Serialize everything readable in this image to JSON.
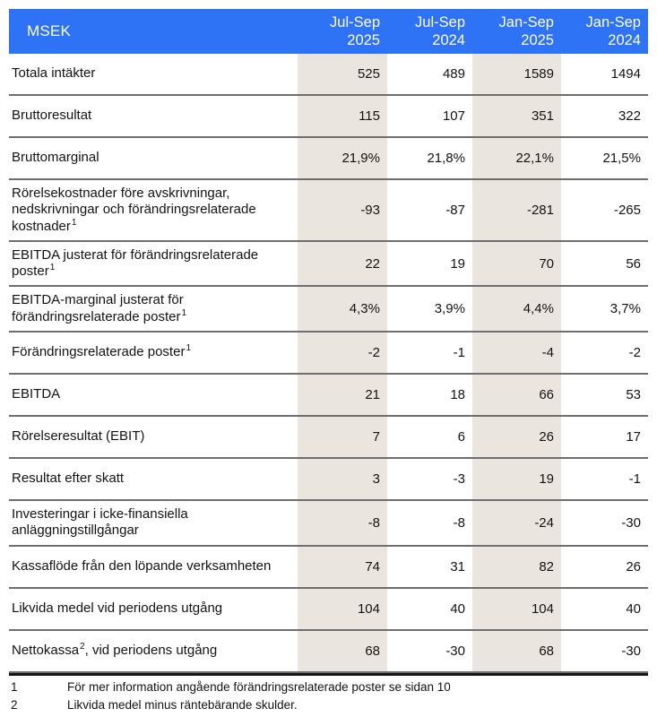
{
  "table": {
    "unit_label": "MSEK",
    "header": {
      "columns": [
        {
          "period": "Jul-Sep",
          "year": "2025"
        },
        {
          "period": "Jul-Sep",
          "year": "2024"
        },
        {
          "period": "Jan-Sep",
          "year": "2025"
        },
        {
          "period": "Jan-Sep",
          "year": "2024"
        }
      ]
    },
    "highlight_columns": [
      0,
      2
    ],
    "rows": [
      {
        "label": "Totala intäkter",
        "values": [
          "525",
          "489",
          "1589",
          "1494"
        ]
      },
      {
        "label": "Bruttoresultat",
        "values": [
          "115",
          "107",
          "351",
          "322"
        ]
      },
      {
        "label": "Bruttomarginal",
        "values": [
          "21,9%",
          "21,8%",
          "22,1%",
          "21,5%"
        ]
      },
      {
        "label": "Rörelsekostnader före avskrivningar, nedskrivningar och förändringsrelaterade kostnader",
        "sup": "1",
        "values": [
          "-93",
          "-87",
          "-281",
          "-265"
        ]
      },
      {
        "label": "EBITDA justerat för förändringsrelaterade poster",
        "sup": "1",
        "values": [
          "22",
          "19",
          "70",
          "56"
        ]
      },
      {
        "label": "EBITDA-marginal justerat för förändringsrelaterade poster",
        "sup": "1",
        "values": [
          "4,3%",
          "3,9%",
          "4,4%",
          "3,7%"
        ]
      },
      {
        "label": "Förändringsrelaterade poster",
        "sup": "1",
        "values": [
          "-2",
          "-1",
          "-4",
          "-2"
        ]
      },
      {
        "label": "EBITDA",
        "values": [
          "21",
          "18",
          "66",
          "53"
        ]
      },
      {
        "label": "Rörelseresultat (EBIT)",
        "values": [
          "7",
          "6",
          "26",
          "17"
        ]
      },
      {
        "label": "Resultat efter skatt",
        "values": [
          "3",
          "-3",
          "19",
          "-1"
        ]
      },
      {
        "label": "Investeringar i icke-finansiella anläggningstillgångar",
        "values": [
          "-8",
          "-8",
          "-24",
          "-30"
        ]
      },
      {
        "label": "Kassaflöde från den löpande verksamheten",
        "values": [
          "74",
          "31",
          "82",
          "26"
        ]
      },
      {
        "label": "Likvida medel vid periodens utgång",
        "values": [
          "104",
          "40",
          "104",
          "40"
        ]
      },
      {
        "label": "Nettokassa",
        "sup": "2",
        "suffix": ", vid periodens utgång",
        "values": [
          "68",
          "-30",
          "68",
          "-30"
        ]
      }
    ],
    "footnotes": [
      {
        "marker": "1",
        "text": "För mer information angående förändringsrelaterade poster se sidan 10"
      },
      {
        "marker": "2",
        "text": "Likvida medel minus räntebärande skulder."
      }
    ],
    "colors": {
      "header_bg": "#2E72F5",
      "header_text": "#FFFFFF",
      "column_highlight": "#EAE6DF",
      "row_border": "#6E6E6E",
      "thick_border": "#161616",
      "text": "#131313"
    }
  }
}
